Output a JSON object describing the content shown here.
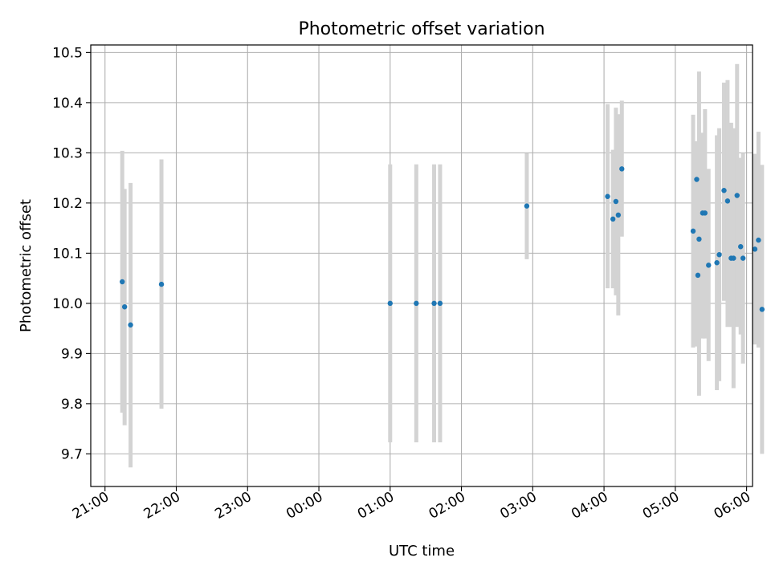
{
  "chart_data": {
    "type": "scatter",
    "title": "Photometric offset variation",
    "xlabel": "UTC time",
    "ylabel": "Photometric offset",
    "x_unit": "minutes from 21:00 UTC",
    "xlim": [
      -12,
      545
    ],
    "ylim": [
      9.635,
      10.515
    ],
    "grid": true,
    "x_ticks": [
      {
        "value": 0,
        "label": "21:00"
      },
      {
        "value": 60,
        "label": "22:00"
      },
      {
        "value": 120,
        "label": "23:00"
      },
      {
        "value": 180,
        "label": "00:00"
      },
      {
        "value": 240,
        "label": "01:00"
      },
      {
        "value": 300,
        "label": "02:00"
      },
      {
        "value": 360,
        "label": "03:00"
      },
      {
        "value": 420,
        "label": "04:00"
      },
      {
        "value": 480,
        "label": "05:00"
      },
      {
        "value": 540,
        "label": "06:00"
      }
    ],
    "y_ticks": [
      {
        "value": 9.7,
        "label": "9.7"
      },
      {
        "value": 9.8,
        "label": "9.8"
      },
      {
        "value": 9.9,
        "label": "9.9"
      },
      {
        "value": 10.0,
        "label": "10.0"
      },
      {
        "value": 10.1,
        "label": "10.1"
      },
      {
        "value": 10.2,
        "label": "10.2"
      },
      {
        "value": 10.3,
        "label": "10.3"
      },
      {
        "value": 10.4,
        "label": "10.4"
      },
      {
        "value": 10.5,
        "label": "10.5"
      }
    ],
    "marker_color": "#1f77b4",
    "errorbar_color": "#d3d3d3",
    "points": [
      {
        "x": 14.5,
        "y": 10.043,
        "lo": 9.782,
        "hi": 10.304
      },
      {
        "x": 16.5,
        "y": 9.993,
        "lo": 9.757,
        "hi": 10.228
      },
      {
        "x": 21.5,
        "y": 9.957,
        "lo": 9.673,
        "hi": 10.24
      },
      {
        "x": 47.5,
        "y": 10.038,
        "lo": 9.79,
        "hi": 10.287
      },
      {
        "x": 240,
        "y": 10.0,
        "lo": 9.723,
        "hi": 10.277
      },
      {
        "x": 262,
        "y": 10.0,
        "lo": 9.723,
        "hi": 10.277
      },
      {
        "x": 277,
        "y": 10.0,
        "lo": 9.723,
        "hi": 10.277
      },
      {
        "x": 282,
        "y": 10.0,
        "lo": 9.723,
        "hi": 10.277
      },
      {
        "x": 355,
        "y": 10.194,
        "lo": 10.088,
        "hi": 10.299
      },
      {
        "x": 423,
        "y": 10.213,
        "lo": 10.03,
        "hi": 10.397
      },
      {
        "x": 427.5,
        "y": 10.168,
        "lo": 10.03,
        "hi": 10.306
      },
      {
        "x": 430,
        "y": 10.203,
        "lo": 10.016,
        "hi": 10.39
      },
      {
        "x": 432,
        "y": 10.176,
        "lo": 9.976,
        "hi": 10.377
      },
      {
        "x": 435,
        "y": 10.268,
        "lo": 10.133,
        "hi": 10.404
      },
      {
        "x": 495,
        "y": 10.144,
        "lo": 9.912,
        "hi": 10.376
      },
      {
        "x": 498,
        "y": 10.247,
        "lo": 9.914,
        "hi": 10.323
      },
      {
        "x": 499,
        "y": 10.056,
        "lo": 9.97,
        "hi": 10.142
      },
      {
        "x": 500,
        "y": 10.128,
        "lo": 9.816,
        "hi": 10.462
      },
      {
        "x": 503,
        "y": 10.18,
        "lo": 9.93,
        "hi": 10.34
      },
      {
        "x": 505,
        "y": 10.18,
        "lo": 9.93,
        "hi": 10.387
      },
      {
        "x": 508,
        "y": 10.076,
        "lo": 9.885,
        "hi": 10.268
      },
      {
        "x": 515,
        "y": 10.081,
        "lo": 9.827,
        "hi": 10.335
      },
      {
        "x": 517,
        "y": 10.097,
        "lo": 9.845,
        "hi": 10.349
      },
      {
        "x": 521,
        "y": 10.225,
        "lo": 10.005,
        "hi": 10.44
      },
      {
        "x": 524,
        "y": 10.204,
        "lo": 9.953,
        "hi": 10.445
      },
      {
        "x": 527,
        "y": 10.09,
        "lo": 9.953,
        "hi": 10.36
      },
      {
        "x": 529,
        "y": 10.09,
        "lo": 9.831,
        "hi": 10.349
      },
      {
        "x": 532,
        "y": 10.215,
        "lo": 9.953,
        "hi": 10.477
      },
      {
        "x": 535,
        "y": 10.113,
        "lo": 9.938,
        "hi": 10.29
      },
      {
        "x": 537,
        "y": 10.09,
        "lo": 9.88,
        "hi": 10.3
      },
      {
        "x": 547,
        "y": 10.108,
        "lo": 9.918,
        "hi": 10.298
      },
      {
        "x": 550,
        "y": 10.126,
        "lo": 9.912,
        "hi": 10.342
      },
      {
        "x": 553,
        "y": 9.988,
        "lo": 9.7,
        "hi": 10.276
      }
    ]
  }
}
